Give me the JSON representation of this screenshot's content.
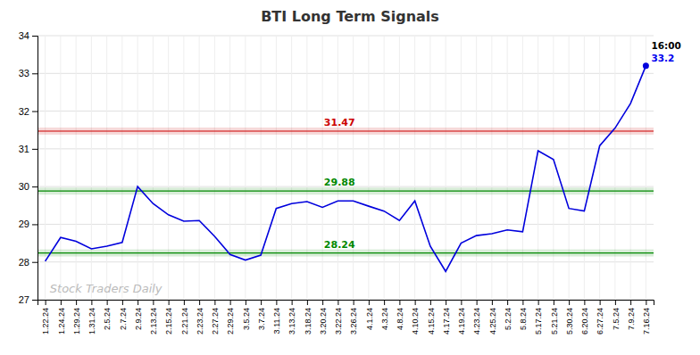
{
  "chart_data": {
    "type": "line",
    "title": "BTI Long Term Signals",
    "categories": [
      "1.22.24",
      "1.24.24",
      "1.29.24",
      "1.31.24",
      "2.5.24",
      "2.7.24",
      "2.9.24",
      "2.13.24",
      "2.15.24",
      "2.21.24",
      "2.23.24",
      "2.27.24",
      "2.29.24",
      "3.5.24",
      "3.7.24",
      "3.11.24",
      "3.13.24",
      "3.18.24",
      "3.20.24",
      "3.22.24",
      "3.26.24",
      "4.1.24",
      "4.3.24",
      "4.8.24",
      "4.10.24",
      "4.15.24",
      "4.17.24",
      "4.19.24",
      "4.23.24",
      "4.25.24",
      "5.2.24",
      "5.8.24",
      "5.17.24",
      "5.21.24",
      "5.30.24",
      "6.20.24",
      "6.27.24",
      "7.5.24",
      "7.9.24",
      "7.16.24"
    ],
    "values": [
      28.02,
      28.65,
      28.55,
      28.35,
      28.42,
      28.52,
      30.0,
      29.55,
      29.25,
      29.08,
      29.1,
      28.68,
      28.2,
      28.05,
      28.18,
      29.42,
      29.55,
      29.6,
      29.45,
      29.62,
      29.62,
      29.48,
      29.35,
      29.1,
      29.62,
      28.42,
      27.75,
      28.5,
      28.7,
      28.75,
      28.85,
      28.8,
      30.95,
      30.72,
      29.42,
      29.35,
      31.08,
      31.55,
      32.2,
      33.2
    ],
    "color": "#0000dd",
    "ylim": [
      27,
      34
    ],
    "yticks": [
      27,
      28,
      29,
      30,
      31,
      32,
      33,
      34
    ],
    "grid": true,
    "reference_lines": [
      {
        "value": 31.47,
        "color": "#cc0000"
      },
      {
        "value": 29.88,
        "color": "#008800"
      },
      {
        "value": 28.24,
        "color": "#008800"
      }
    ],
    "annotations": [
      {
        "text": "16:00",
        "color": "#000000"
      },
      {
        "text": "33.2",
        "color": "#0000ee"
      }
    ],
    "watermark": "Stock Traders Daily"
  }
}
